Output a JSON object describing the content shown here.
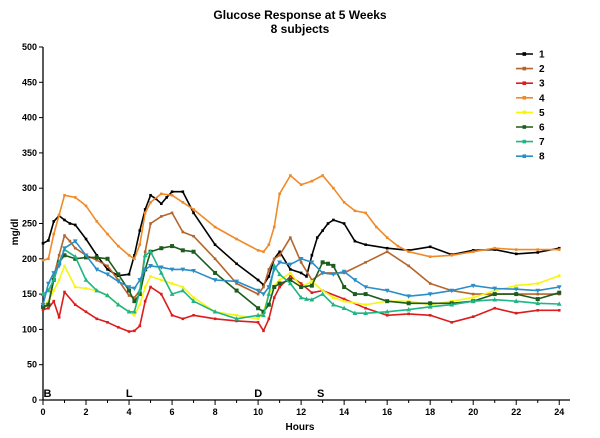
{
  "chart_data": {
    "type": "line",
    "title": "Glucose Response at 5 Weeks",
    "subtitle": "8 subjects",
    "xlabel": "Hours",
    "ylabel": "mg/dl",
    "xlim": [
      0,
      24.5
    ],
    "ylim": [
      0,
      500
    ],
    "xticks": [
      0,
      2,
      4,
      6,
      8,
      10,
      12,
      14,
      16,
      18,
      20,
      22,
      24
    ],
    "yticks": [
      0,
      50,
      100,
      150,
      200,
      250,
      300,
      350,
      400,
      450,
      500
    ],
    "grid": false,
    "legend_position": "top-right",
    "annotations": [
      {
        "text": "B",
        "x": 0.3
      },
      {
        "text": "L",
        "x": 4.1
      },
      {
        "text": "D",
        "x": 10.1
      },
      {
        "text": "S",
        "x": 13.0
      }
    ],
    "series": [
      {
        "name": "1",
        "color": "#000000",
        "x": [
          0,
          0.25,
          0.5,
          0.75,
          1,
          1.25,
          1.5,
          2,
          2.5,
          3,
          3.5,
          4,
          4.25,
          4.5,
          4.75,
          5,
          5.25,
          5.5,
          5.75,
          6,
          6.5,
          7,
          8,
          9,
          10,
          10.25,
          10.5,
          10.75,
          11,
          11.5,
          12,
          12.25,
          12.5,
          12.75,
          13,
          13.25,
          13.5,
          14,
          14.5,
          15,
          16,
          17,
          18,
          19,
          20,
          21,
          22,
          23,
          24
        ],
        "y": [
          222,
          226,
          253,
          261,
          255,
          250,
          248,
          228,
          205,
          185,
          176,
          178,
          205,
          240,
          270,
          290,
          285,
          278,
          287,
          295,
          295,
          265,
          220,
          193,
          170,
          163,
          175,
          200,
          210,
          185,
          180,
          175,
          205,
          230,
          240,
          250,
          255,
          250,
          225,
          220,
          215,
          212,
          217,
          206,
          212,
          213,
          207,
          209,
          215
        ]
      },
      {
        "name": "2",
        "color": "#b5652b",
        "x": [
          0,
          0.25,
          0.5,
          0.75,
          1,
          1.25,
          1.5,
          2,
          2.5,
          3,
          3.5,
          4,
          4.25,
          4.5,
          4.75,
          5,
          5.5,
          6,
          6.5,
          7,
          8,
          9,
          10,
          10.25,
          10.5,
          10.75,
          11,
          11.5,
          12,
          12.5,
          13,
          14,
          15,
          16,
          17,
          18,
          19,
          20,
          21,
          22,
          23,
          24
        ],
        "y": [
          130,
          135,
          175,
          205,
          233,
          225,
          215,
          205,
          198,
          190,
          170,
          148,
          145,
          155,
          210,
          250,
          260,
          265,
          238,
          232,
          200,
          165,
          150,
          160,
          185,
          200,
          205,
          230,
          195,
          170,
          180,
          180,
          195,
          210,
          190,
          165,
          155,
          150,
          150,
          150,
          150,
          150
        ]
      },
      {
        "name": "3",
        "color": "#dd1c1c",
        "x": [
          0,
          0.25,
          0.5,
          0.75,
          1,
          1.5,
          2,
          2.5,
          3,
          3.5,
          4,
          4.25,
          4.5,
          4.75,
          5,
          5.5,
          6,
          6.5,
          7,
          8,
          9,
          10,
          10.25,
          10.5,
          10.75,
          11,
          11.5,
          12,
          12.5,
          13,
          14,
          15,
          16,
          17,
          18,
          19,
          20,
          21,
          22,
          23,
          24
        ],
        "y": [
          128,
          130,
          140,
          117,
          153,
          135,
          125,
          115,
          110,
          103,
          97,
          98,
          105,
          140,
          160,
          150,
          120,
          115,
          120,
          115,
          112,
          110,
          98,
          115,
          145,
          160,
          175,
          165,
          152,
          155,
          143,
          130,
          120,
          122,
          120,
          110,
          118,
          130,
          123,
          127,
          127
        ]
      },
      {
        "name": "4",
        "color": "#f08a29",
        "x": [
          0,
          0.25,
          0.5,
          0.75,
          1,
          1.5,
          2,
          2.5,
          3,
          3.5,
          4,
          4.25,
          4.5,
          4.75,
          5,
          5.5,
          6,
          6.5,
          7,
          8,
          9,
          10,
          10.25,
          10.5,
          10.75,
          11,
          11.5,
          12,
          12.5,
          13,
          13.5,
          14,
          14.5,
          15,
          15.5,
          16,
          16.5,
          17,
          18,
          19,
          20,
          21,
          22,
          23,
          24
        ],
        "y": [
          198,
          200,
          235,
          262,
          290,
          287,
          275,
          253,
          235,
          218,
          205,
          200,
          220,
          265,
          280,
          292,
          290,
          280,
          270,
          245,
          228,
          212,
          210,
          220,
          245,
          292,
          318,
          305,
          310,
          318,
          300,
          280,
          268,
          265,
          245,
          230,
          218,
          210,
          203,
          205,
          210,
          215,
          213,
          213,
          213
        ]
      },
      {
        "name": "5",
        "color": "#f5f514",
        "x": [
          0,
          0.25,
          0.5,
          0.75,
          1,
          1.5,
          2,
          2.5,
          3,
          3.5,
          4,
          4.25,
          4.5,
          4.75,
          5,
          5.5,
          6,
          6.5,
          7,
          8,
          9,
          10,
          10.25,
          10.5,
          10.75,
          11,
          11.5,
          12,
          12.5,
          13,
          13.5,
          14,
          15,
          16,
          17,
          18,
          19,
          20,
          21,
          22,
          23,
          24
        ],
        "y": [
          133,
          140,
          155,
          170,
          190,
          160,
          158,
          155,
          148,
          135,
          125,
          120,
          135,
          160,
          175,
          170,
          165,
          160,
          145,
          125,
          120,
          115,
          125,
          150,
          162,
          170,
          180,
          160,
          168,
          155,
          145,
          140,
          135,
          140,
          140,
          135,
          140,
          145,
          155,
          162,
          165,
          176
        ]
      },
      {
        "name": "6",
        "color": "#1c5c1c",
        "x": [
          0,
          0.25,
          0.5,
          0.75,
          1,
          1.5,
          2,
          2.5,
          3,
          3.5,
          4,
          4.25,
          4.5,
          4.75,
          5,
          5.5,
          6,
          6.5,
          7,
          8,
          9,
          10,
          10.25,
          10.5,
          10.75,
          11,
          11.5,
          12,
          12.5,
          13,
          13.25,
          13.5,
          14,
          14.5,
          15,
          16,
          17,
          18,
          19,
          20,
          21,
          22,
          23,
          24
        ],
        "y": [
          132,
          135,
          170,
          195,
          205,
          200,
          202,
          202,
          200,
          178,
          155,
          140,
          150,
          185,
          210,
          215,
          218,
          212,
          210,
          180,
          155,
          130,
          125,
          135,
          160,
          165,
          170,
          160,
          162,
          195,
          193,
          190,
          160,
          150,
          150,
          140,
          137,
          137,
          137,
          140,
          150,
          150,
          143,
          152
        ]
      },
      {
        "name": "7",
        "color": "#20b585",
        "x": [
          0,
          0.25,
          0.5,
          0.75,
          1,
          1.5,
          2,
          2.5,
          3,
          3.5,
          4,
          4.25,
          4.5,
          4.75,
          5,
          5.5,
          6,
          6.5,
          7,
          8,
          9,
          10,
          10.25,
          10.5,
          10.75,
          11,
          11.5,
          12,
          12.25,
          12.5,
          13,
          13.5,
          14,
          14.5,
          15,
          16,
          17,
          18,
          19,
          20,
          21,
          22,
          23,
          24
        ],
        "y": [
          150,
          155,
          170,
          195,
          213,
          203,
          170,
          155,
          148,
          135,
          125,
          125,
          155,
          205,
          210,
          180,
          150,
          155,
          140,
          125,
          115,
          120,
          120,
          150,
          190,
          178,
          165,
          145,
          143,
          142,
          150,
          135,
          130,
          123,
          123,
          125,
          128,
          132,
          135,
          140,
          142,
          140,
          137,
          136
        ]
      },
      {
        "name": "8",
        "color": "#2a8ec8",
        "x": [
          0,
          0.25,
          0.5,
          0.75,
          1,
          1.5,
          2,
          2.5,
          3,
          3.5,
          4,
          4.25,
          4.5,
          4.75,
          5,
          5.5,
          6,
          6.5,
          7,
          8,
          9,
          10,
          10.25,
          10.5,
          10.75,
          11,
          11.5,
          12,
          12.5,
          13,
          13.5,
          14,
          14.5,
          15,
          16,
          17,
          18,
          19,
          20,
          21,
          22,
          23,
          24
        ],
        "y": [
          135,
          165,
          180,
          190,
          215,
          225,
          205,
          185,
          178,
          168,
          160,
          158,
          170,
          185,
          190,
          188,
          185,
          185,
          183,
          170,
          168,
          155,
          150,
          160,
          185,
          195,
          192,
          200,
          195,
          180,
          178,
          182,
          170,
          160,
          155,
          147,
          150,
          155,
          162,
          158,
          157,
          155,
          160
        ]
      }
    ]
  }
}
